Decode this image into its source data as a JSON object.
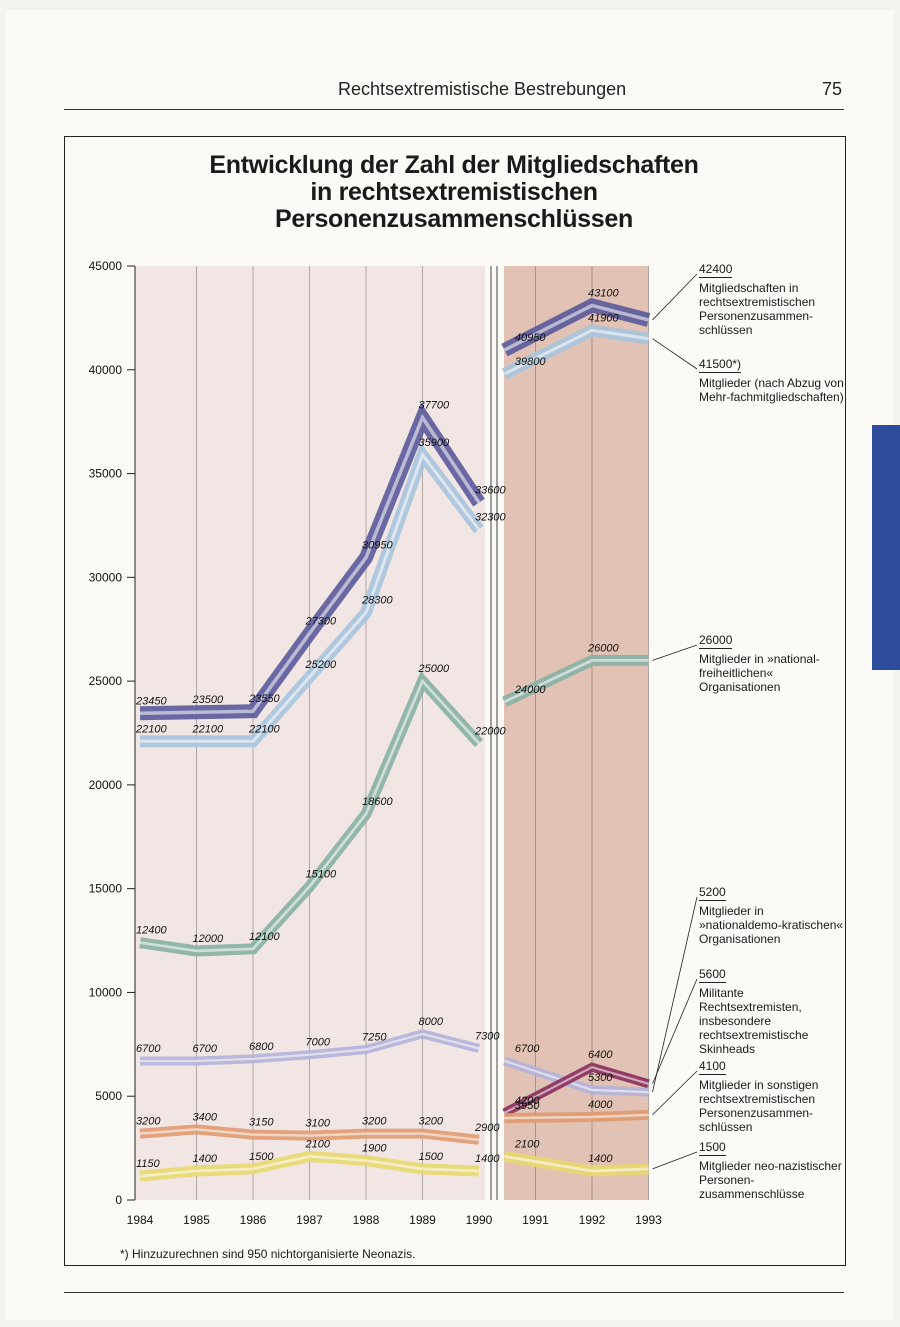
{
  "header": {
    "title": "Rechtsextremistische Bestrebungen",
    "page_number": "75"
  },
  "title_lines": [
    "Entwicklung der Zahl der Mitgliedschaften",
    "in rechtsextremistischen",
    "Personenzusammenschlüssen"
  ],
  "footnote": "*) Hinzuzurechnen sind 950 nichtorganisierte Neonazis.",
  "legend": [
    {
      "value": "42400",
      "text": "Mitgliedschaften in rechtsextremistischen Personenzusammen-schlüssen"
    },
    {
      "value": "41500*)",
      "text": "Mitglieder (nach Abzug von Mehr-fachmitgliedschaften)"
    },
    {
      "value": "26000",
      "text": "Mitglieder in »national-freiheitlichen« Organisationen"
    },
    {
      "value": "5200",
      "text": "Mitglieder in »nationaldemo-kratischen« Organisationen"
    },
    {
      "value": "5600",
      "text": "Militante Rechtsextremisten, insbesondere rechtsextremistische Skinheads"
    },
    {
      "value": "4100",
      "text": "Mitglieder in sonstigen rechtsextremistischen Personenzusammen-schlüssen"
    },
    {
      "value": "1500",
      "text": "Mitglieder neo-nazistischer Personen-zusammenschlüsse"
    }
  ],
  "chart_data": {
    "type": "line",
    "title": "Entwicklung der Zahl der Mitgliedschaften in rechtsextremistischen Personenzusammenschlüssen",
    "xlabel": "",
    "ylabel": "",
    "x": [
      "1984",
      "1985",
      "1986",
      "1987",
      "1988",
      "1989",
      "1990",
      "1991",
      "1992",
      "1993"
    ],
    "ylim": [
      0,
      45000
    ],
    "yticks": [
      "45000",
      "40000",
      "35000",
      "30000",
      "25000",
      "20000",
      "15000",
      "10000",
      "5000",
      "0"
    ],
    "shaded_period": [
      "1990",
      "1993"
    ],
    "series": [
      {
        "name": "Mitgliedschaften in rechtsextremistischen Personenzusammenschlüssen",
        "color": "#5a5a9a",
        "x": [
          1984,
          1985,
          1986,
          1987,
          1988,
          1989,
          1990,
          1990.4,
          1991,
          1992,
          1993
        ],
        "values": [
          23450,
          23500,
          23550,
          27300,
          30950,
          37700,
          33600,
          null,
          40950,
          43100,
          42400
        ]
      },
      {
        "name": "Mitglieder (nach Abzug von Mehrfachmitgliedschaften)",
        "color": "#a8c4dc",
        "x": [
          1984,
          1985,
          1986,
          1987,
          1988,
          1989,
          1990,
          1990.4,
          1991,
          1992,
          1993
        ],
        "values": [
          22100,
          22100,
          22100,
          25200,
          28300,
          35900,
          32300,
          null,
          39800,
          41900,
          41500
        ]
      },
      {
        "name": "Mitglieder in »national-freiheitlichen« Organisationen",
        "color": "#88b0a4",
        "x": [
          1984,
          1985,
          1986,
          1987,
          1988,
          1989,
          1990,
          1990.4,
          1991,
          1992,
          1993
        ],
        "values": [
          12400,
          12000,
          12100,
          15100,
          18600,
          25000,
          22000,
          null,
          24000,
          26000,
          26000
        ]
      },
      {
        "name": "Mitglieder in »nationaldemokratischen« Organisationen",
        "color": "#b4b2d8",
        "x": [
          1984,
          1985,
          1986,
          1987,
          1988,
          1989,
          1990,
          1990.4,
          1991,
          1992,
          1993
        ],
        "values": [
          6700,
          6700,
          6800,
          7000,
          7250,
          8000,
          7300,
          null,
          6700,
          5300,
          5200
        ]
      },
      {
        "name": "Militante Rechtsextremisten, insbesondere rechtsextremistische Skinheads",
        "color": "#8a2e5c",
        "x": [
          1991,
          1992,
          1993
        ],
        "values": [
          4200,
          6400,
          5600
        ]
      },
      {
        "name": "Mitglieder in sonstigen rechtsextremistischen Personenzusammenschlüssen",
        "color": "#e09a70",
        "x": [
          1984,
          1985,
          1986,
          1987,
          1988,
          1989,
          1990,
          1990.4,
          1991,
          1992,
          1993
        ],
        "values": [
          3200,
          3400,
          3150,
          3100,
          3200,
          3200,
          2900,
          null,
          3950,
          4000,
          4100
        ]
      },
      {
        "name": "Mitglieder neonazistischer Personenzusammenschlüsse",
        "color": "#e8d870",
        "x": [
          1984,
          1985,
          1986,
          1987,
          1988,
          1989,
          1990,
          1990.4,
          1991,
          1992,
          1993
        ],
        "values": [
          1150,
          1400,
          1500,
          2100,
          1900,
          1500,
          1400,
          null,
          2100,
          1400,
          1500
        ]
      }
    ],
    "data_labels": [
      {
        "x": 1984,
        "y": 23450,
        "text": "23450"
      },
      {
        "x": 1985,
        "y": 23500,
        "text": "23500"
      },
      {
        "x": 1986,
        "y": 23550,
        "text": "23550"
      },
      {
        "x": 1987,
        "y": 27300,
        "text": "27300"
      },
      {
        "x": 1988,
        "y": 30950,
        "text": "30950"
      },
      {
        "x": 1989,
        "y": 37700,
        "text": "37700"
      },
      {
        "x": 1990,
        "y": 33600,
        "text": "33600"
      },
      {
        "x": 1991,
        "y": 40950,
        "text": "40950"
      },
      {
        "x": 1992,
        "y": 43100,
        "text": "43100"
      },
      {
        "x": 1984,
        "y": 22100,
        "text": "22100"
      },
      {
        "x": 1985,
        "y": 22100,
        "text": "22100"
      },
      {
        "x": 1986,
        "y": 22100,
        "text": "22100"
      },
      {
        "x": 1987,
        "y": 25200,
        "text": "25200"
      },
      {
        "x": 1988,
        "y": 28300,
        "text": "28300"
      },
      {
        "x": 1989,
        "y": 35900,
        "text": "35900"
      },
      {
        "x": 1990,
        "y": 32300,
        "text": "32300"
      },
      {
        "x": 1991,
        "y": 39800,
        "text": "39800"
      },
      {
        "x": 1992,
        "y": 41900,
        "text": "41900"
      },
      {
        "x": 1984,
        "y": 12400,
        "text": "12400"
      },
      {
        "x": 1985,
        "y": 12000,
        "text": "12000"
      },
      {
        "x": 1986,
        "y": 12100,
        "text": "12100"
      },
      {
        "x": 1987,
        "y": 15100,
        "text": "15100"
      },
      {
        "x": 1988,
        "y": 18600,
        "text": "18600"
      },
      {
        "x": 1989,
        "y": 25000,
        "text": "25000"
      },
      {
        "x": 1990,
        "y": 22000,
        "text": "22000"
      },
      {
        "x": 1991,
        "y": 24000,
        "text": "24000"
      },
      {
        "x": 1992,
        "y": 26000,
        "text": "26000"
      },
      {
        "x": 1984,
        "y": 6700,
        "text": "6700"
      },
      {
        "x": 1985,
        "y": 6700,
        "text": "6700"
      },
      {
        "x": 1986,
        "y": 6800,
        "text": "6800"
      },
      {
        "x": 1987,
        "y": 7000,
        "text": "7000"
      },
      {
        "x": 1988,
        "y": 7250,
        "text": "7250"
      },
      {
        "x": 1989,
        "y": 8000,
        "text": "8000"
      },
      {
        "x": 1990,
        "y": 7300,
        "text": "7300"
      },
      {
        "x": 1991,
        "y": 6700,
        "text": "6700"
      },
      {
        "x": 1992,
        "y": 5300,
        "text": "5300"
      },
      {
        "x": 1991,
        "y": 4200,
        "text": "4200"
      },
      {
        "x": 1992,
        "y": 6400,
        "text": "6400"
      },
      {
        "x": 1984,
        "y": 3200,
        "text": "3200"
      },
      {
        "x": 1985,
        "y": 3400,
        "text": "3400"
      },
      {
        "x": 1986,
        "y": 3150,
        "text": "3150"
      },
      {
        "x": 1987,
        "y": 3100,
        "text": "3100"
      },
      {
        "x": 1988,
        "y": 3200,
        "text": "3200"
      },
      {
        "x": 1989,
        "y": 3200,
        "text": "3200"
      },
      {
        "x": 1990,
        "y": 2900,
        "text": "2900"
      },
      {
        "x": 1991,
        "y": 3950,
        "text": "3950"
      },
      {
        "x": 1992,
        "y": 4000,
        "text": "4000"
      },
      {
        "x": 1984,
        "y": 1150,
        "text": "1150"
      },
      {
        "x": 1985,
        "y": 1400,
        "text": "1400"
      },
      {
        "x": 1986,
        "y": 1500,
        "text": "1500"
      },
      {
        "x": 1987,
        "y": 2100,
        "text": "2100"
      },
      {
        "x": 1988,
        "y": 1900,
        "text": "1900"
      },
      {
        "x": 1989,
        "y": 1500,
        "text": "1500"
      },
      {
        "x": 1990,
        "y": 1400,
        "text": "1400"
      },
      {
        "x": 1991,
        "y": 2100,
        "text": "2100"
      },
      {
        "x": 1992,
        "y": 1400,
        "text": "1400"
      }
    ]
  }
}
